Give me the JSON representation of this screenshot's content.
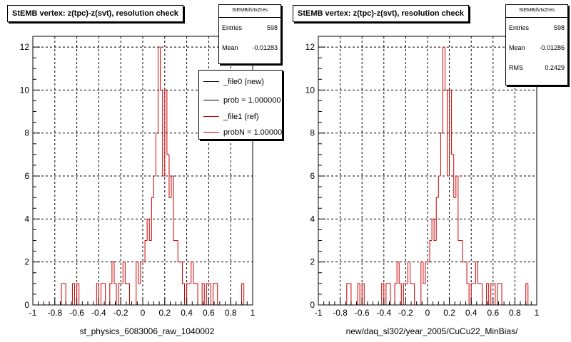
{
  "panels": [
    {
      "title": "StEMB  vertex: z(tpc)-z(svt), resolution check",
      "xlabel": "st_physics_6083006_raw_1040002",
      "stats": {
        "name": "StEMBdVtxZres",
        "rows": [
          {
            "label": "Entries",
            "value": "598"
          },
          {
            "label": "Mean",
            "value": "-0.01283"
          }
        ]
      },
      "legend": [
        {
          "label": "_file0 (new)",
          "color": "#000000"
        },
        {
          "label": "prob = 1.000000",
          "color": "#000000"
        },
        {
          "label": "_file1 (ref)",
          "color": "#cc0000"
        },
        {
          "label": "probN = 1.000000",
          "color": "#cc0000"
        }
      ]
    },
    {
      "title": "StEMB  vertex: z(tpc)-z(svt), resolution check",
      "xlabel": "new/daq_sl302/year_2005/CuCu22_MinBias/",
      "stats": {
        "name": "StEMBdVtxZres",
        "rows": [
          {
            "label": "Entries",
            "value": "598"
          },
          {
            "label": "Mean",
            "value": "-0.01286"
          },
          {
            "label": "RMS",
            "value": "0.2429"
          }
        ]
      }
    }
  ],
  "chart_data": [
    {
      "type": "histogram",
      "title": "StEMB  vertex: z(tpc)-z(svt), resolution check",
      "xlabel": "st_physics_6083006_raw_1040002",
      "xlim": [
        -1,
        1
      ],
      "ylim": [
        0,
        12.5
      ],
      "grid": true,
      "xticks": [
        "-1",
        "-0.8",
        "-0.6",
        "-0.4",
        "-0.2",
        "0",
        "0.2",
        "0.4",
        "0.6",
        "0.8",
        "1"
      ],
      "yticks": [
        "0",
        "2",
        "4",
        "6",
        "8",
        "10",
        "12"
      ],
      "bin_width": 0.02,
      "bin_start": -1.0,
      "series": [
        {
          "color": "#cc0000",
          "values": [
            0,
            0,
            0,
            0,
            0,
            0,
            0,
            0,
            0,
            0,
            0,
            0,
            0,
            1,
            1,
            0,
            0,
            0,
            1,
            0,
            1,
            0,
            0,
            0,
            0,
            0,
            0,
            0,
            0,
            1,
            0,
            1,
            1,
            0,
            0,
            1,
            2,
            1,
            0,
            1,
            1,
            2,
            1,
            1,
            0,
            0,
            0,
            2,
            1,
            2,
            2,
            3,
            4,
            3,
            5,
            6,
            8,
            12,
            10,
            6,
            10,
            7,
            5,
            6,
            3,
            3,
            2,
            2,
            1,
            0,
            1,
            1,
            2,
            1,
            1,
            0,
            0,
            1,
            0,
            1,
            1,
            0,
            1,
            1,
            0,
            0,
            0,
            0,
            0,
            0,
            0,
            0,
            0,
            0,
            0,
            1,
            0,
            0,
            0,
            0
          ]
        }
      ]
    },
    {
      "type": "histogram",
      "title": "StEMB  vertex: z(tpc)-z(svt), resolution check",
      "xlabel": "new/daq_sl302/year_2005/CuCu22_MinBias/",
      "xlim": [
        -1,
        1
      ],
      "ylim": [
        0,
        12.5
      ],
      "grid": true,
      "xticks": [
        "-1",
        "-0.8",
        "-0.6",
        "-0.4",
        "-0.2",
        "0",
        "0.2",
        "0.4",
        "0.6",
        "0.8",
        "1"
      ],
      "yticks": [
        "0",
        "2",
        "4",
        "6",
        "8",
        "10",
        "12"
      ],
      "bin_width": 0.02,
      "bin_start": -1.0,
      "series": [
        {
          "color": "#cc0000",
          "values": [
            0,
            0,
            0,
            0,
            0,
            0,
            0,
            0,
            0,
            0,
            0,
            0,
            0,
            1,
            1,
            0,
            0,
            0,
            1,
            0,
            1,
            0,
            0,
            0,
            0,
            0,
            0,
            0,
            0,
            1,
            0,
            1,
            1,
            0,
            0,
            1,
            2,
            1,
            0,
            1,
            1,
            2,
            1,
            1,
            0,
            0,
            0,
            2,
            1,
            2,
            2,
            3,
            4,
            3,
            5,
            6,
            8,
            12,
            10,
            6,
            10,
            7,
            5,
            6,
            3,
            3,
            2,
            2,
            1,
            0,
            1,
            1,
            2,
            1,
            1,
            0,
            0,
            1,
            0,
            1,
            1,
            0,
            1,
            1,
            0,
            0,
            0,
            0,
            0,
            0,
            0,
            0,
            0,
            0,
            0,
            1,
            0,
            0,
            0,
            0
          ]
        }
      ]
    }
  ]
}
